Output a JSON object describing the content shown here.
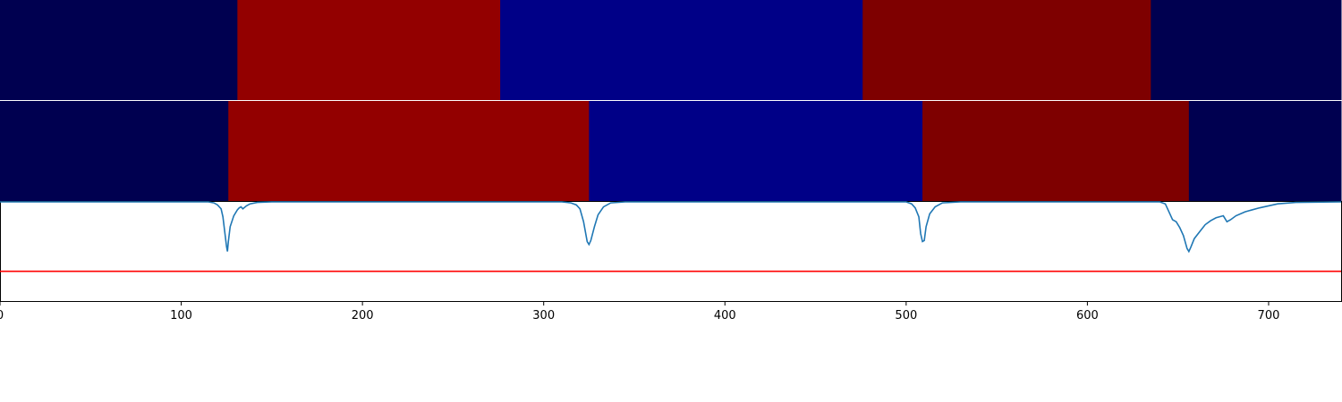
{
  "chart_data": [
    {
      "type": "heatmap",
      "row": "ground-truth",
      "xlim": [
        0,
        740
      ],
      "segments": [
        {
          "start": 0,
          "end": 131,
          "color": "#000050"
        },
        {
          "start": 131,
          "end": 276,
          "color": "#930000"
        },
        {
          "start": 276,
          "end": 476,
          "color": "#000087"
        },
        {
          "start": 476,
          "end": 635,
          "color": "#7e0000"
        },
        {
          "start": 635,
          "end": 740,
          "color": "#000050"
        }
      ]
    },
    {
      "type": "heatmap",
      "row": "prediction",
      "xlim": [
        0,
        740
      ],
      "segments": [
        {
          "start": 0,
          "end": 126,
          "color": "#000050"
        },
        {
          "start": 126,
          "end": 325,
          "color": "#930000"
        },
        {
          "start": 325,
          "end": 509,
          "color": "#000087"
        },
        {
          "start": 509,
          "end": 656,
          "color": "#7e0000"
        },
        {
          "start": 656,
          "end": 740,
          "color": "#000050"
        }
      ]
    },
    {
      "type": "line",
      "xlim": [
        0,
        740
      ],
      "ylim": [
        0,
        1
      ],
      "xticks": [
        "0",
        "100",
        "200",
        "300",
        "400",
        "500",
        "600",
        "700"
      ],
      "series": [
        {
          "color": "#1f77b4",
          "points": [
            [
              0,
              1.0
            ],
            [
              115,
              1.0
            ],
            [
              118,
              0.99
            ],
            [
              120,
              0.97
            ],
            [
              122,
              0.93
            ],
            [
              123,
              0.85
            ],
            [
              124,
              0.7
            ],
            [
              125,
              0.55
            ],
            [
              125.5,
              0.5
            ],
            [
              126,
              0.6
            ],
            [
              127,
              0.75
            ],
            [
              129,
              0.86
            ],
            [
              131,
              0.92
            ],
            [
              132,
              0.94
            ],
            [
              133,
              0.95
            ],
            [
              134,
              0.93
            ],
            [
              136,
              0.96
            ],
            [
              138,
              0.98
            ],
            [
              142,
              0.995
            ],
            [
              150,
              1.0
            ],
            [
              310,
              1.0
            ],
            [
              315,
              0.99
            ],
            [
              318,
              0.97
            ],
            [
              320,
              0.93
            ],
            [
              322,
              0.8
            ],
            [
              324,
              0.6
            ],
            [
              325,
              0.57
            ],
            [
              326,
              0.61
            ],
            [
              328,
              0.75
            ],
            [
              330,
              0.87
            ],
            [
              333,
              0.95
            ],
            [
              337,
              0.99
            ],
            [
              345,
              1.0
            ],
            [
              500,
              1.0
            ],
            [
              503,
              0.98
            ],
            [
              505,
              0.94
            ],
            [
              507,
              0.85
            ],
            [
              508,
              0.68
            ],
            [
              509,
              0.6
            ],
            [
              510,
              0.61
            ],
            [
              511,
              0.75
            ],
            [
              513,
              0.88
            ],
            [
              516,
              0.95
            ],
            [
              520,
              0.99
            ],
            [
              530,
              1.0
            ],
            [
              640,
              1.0
            ],
            [
              643,
              0.98
            ],
            [
              645,
              0.9
            ],
            [
              647,
              0.82
            ],
            [
              649,
              0.8
            ],
            [
              651,
              0.74
            ],
            [
              653,
              0.66
            ],
            [
              655,
              0.53
            ],
            [
              656,
              0.5
            ],
            [
              657,
              0.54
            ],
            [
              659,
              0.63
            ],
            [
              662,
              0.7
            ],
            [
              665,
              0.77
            ],
            [
              668,
              0.81
            ],
            [
              671,
              0.84
            ],
            [
              675,
              0.86
            ],
            [
              677,
              0.8
            ],
            [
              679,
              0.82
            ],
            [
              682,
              0.86
            ],
            [
              687,
              0.9
            ],
            [
              695,
              0.94
            ],
            [
              705,
              0.98
            ],
            [
              715,
              0.995
            ],
            [
              740,
              1.0
            ]
          ]
        },
        {
          "color": "#ff0000",
          "points": [
            [
              0,
              0.3
            ],
            [
              740,
              0.3
            ]
          ]
        }
      ]
    }
  ]
}
